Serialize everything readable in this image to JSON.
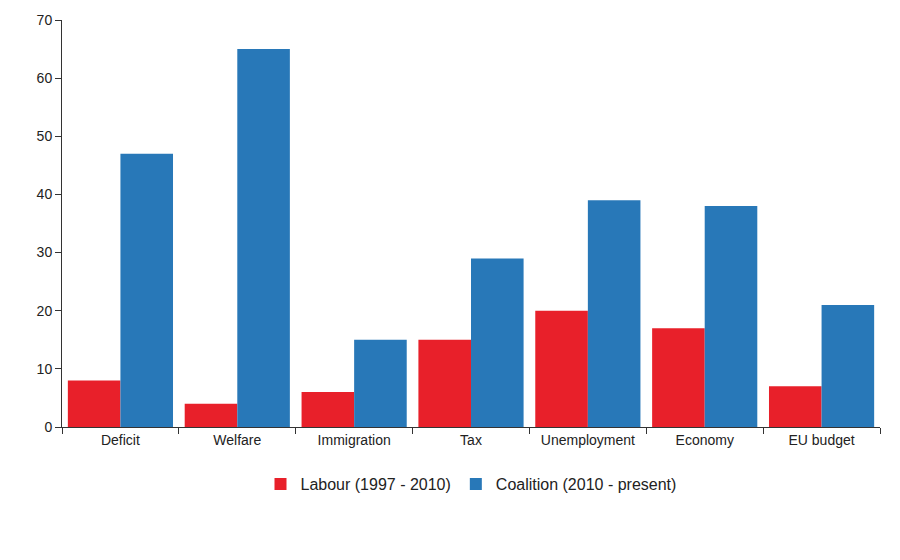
{
  "chart_data": {
    "type": "bar",
    "categories": [
      "Deficit",
      "Welfare",
      "Immigration",
      "Tax",
      "Unemployment",
      "Economy",
      "EU budget"
    ],
    "series": [
      {
        "name": "Labour (1997 - 2010)",
        "color": "#e8202a",
        "values": [
          8,
          4,
          6,
          15,
          20,
          17,
          7
        ]
      },
      {
        "name": "Coalition (2010 - present)",
        "color": "#2878b8",
        "values": [
          47,
          65,
          15,
          29,
          39,
          38,
          21
        ]
      }
    ],
    "ylim": [
      0,
      70
    ],
    "yticks": [
      0,
      10,
      20,
      30,
      40,
      50,
      60,
      70
    ],
    "grid": false,
    "legend": "bottom"
  }
}
